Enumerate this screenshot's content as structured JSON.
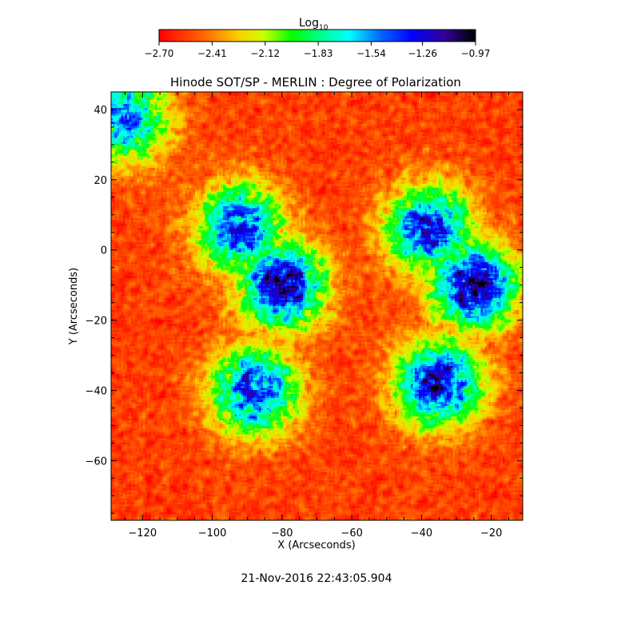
{
  "chart_data": {
    "type": "heatmap",
    "title": "Hinode SOT/SP - MERLIN : Degree of Polarization",
    "xlabel": "X (Arcseconds)",
    "ylabel": "Y (Arcseconds)",
    "xlim": [
      -129,
      -11
    ],
    "ylim": [
      -77,
      45
    ],
    "x_ticks": [
      -120,
      -100,
      -80,
      -60,
      -40,
      -20
    ],
    "y_ticks": [
      40,
      20,
      0,
      -20,
      -40,
      -60
    ],
    "x_tick_labels": [
      "−120",
      "−100",
      "−80",
      "−60",
      "−40",
      "−20"
    ],
    "y_tick_labels": [
      "40",
      "20",
      "0",
      "−20",
      "−40",
      "−60"
    ],
    "colorbar": {
      "label_main": "Log",
      "label_sub": "10",
      "range": [
        -2.7,
        -0.97
      ],
      "ticks": [
        -2.7,
        -2.41,
        -2.12,
        -1.83,
        -1.54,
        -1.26,
        -0.97
      ],
      "tick_labels": [
        "−2.70",
        "−2.41",
        "−2.12",
        "−1.83",
        "−1.54",
        "−1.26",
        "−0.97"
      ],
      "colors": [
        "#ff0000",
        "#ff9900",
        "#ffff00",
        "#00ff00",
        "#00ffff",
        "#0000ff",
        "#000000"
      ]
    },
    "structure": {
      "description_values": "log10 degree of polarization; background mostly -2.70 to -2.41, network lanes reach -0.97",
      "background_level": -2.55,
      "high_regions": [
        {
          "x": -80,
          "y": -10,
          "level": -1.1
        },
        {
          "x": -92,
          "y": 6,
          "level": -1.3
        },
        {
          "x": -25,
          "y": -10,
          "level": -1.1
        },
        {
          "x": -38,
          "y": 6,
          "level": -1.3
        },
        {
          "x": -35,
          "y": -38,
          "level": -1.2
        },
        {
          "x": -88,
          "y": -40,
          "level": -1.3
        },
        {
          "x": -125,
          "y": 37,
          "level": -1.5
        }
      ]
    }
  },
  "timestamp": "21-Nov-2016 22:43:05.904"
}
